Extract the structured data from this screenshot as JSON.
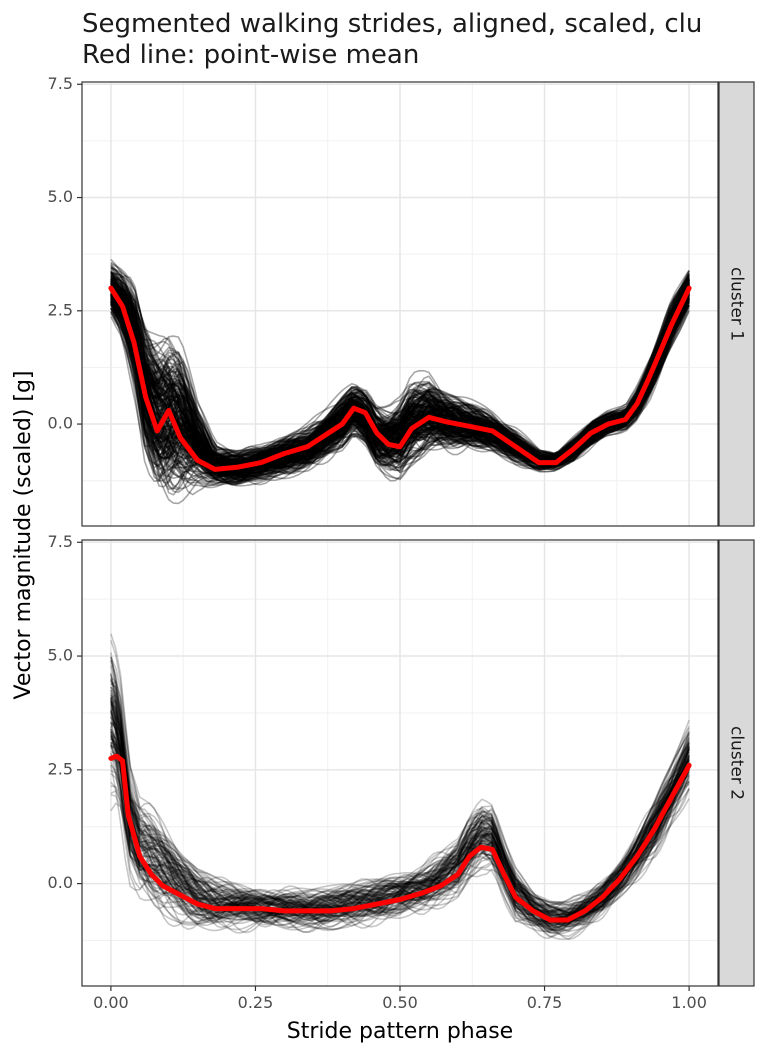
{
  "chart_data": {
    "type": "line",
    "title_lines": [
      "Segmented walking strides, aligned, scaled, clu",
      "Red line: point-wise mean"
    ],
    "xlabel": "Stride pattern phase",
    "ylabel": "Vector magnitude (scaled) [g]",
    "xlim": [
      -0.05,
      1.05
    ],
    "x_ticks": [
      0.0,
      0.25,
      0.5,
      0.75,
      1.0
    ],
    "x_tick_labels": [
      "0.00",
      "0.25",
      "0.50",
      "0.75",
      "1.00"
    ],
    "y_ticks": [
      0.0,
      2.5,
      5.0,
      7.5
    ],
    "y_tick_labels": [
      "0.0",
      "2.5",
      "5.0",
      "7.5"
    ],
    "grid": true,
    "individual_line_color": "#000000",
    "mean_line_color": "#ff0000",
    "panels": [
      {
        "strip": "cluster 1",
        "ylim": [
          -2.25,
          7.55
        ],
        "mean": {
          "x": [
            0.0,
            0.02,
            0.04,
            0.06,
            0.08,
            0.1,
            0.12,
            0.15,
            0.18,
            0.22,
            0.26,
            0.3,
            0.34,
            0.37,
            0.4,
            0.42,
            0.44,
            0.46,
            0.48,
            0.5,
            0.52,
            0.55,
            0.58,
            0.62,
            0.66,
            0.7,
            0.74,
            0.77,
            0.8,
            0.83,
            0.86,
            0.89,
            0.91,
            0.93,
            0.95,
            0.97,
            1.0
          ],
          "y": [
            3.0,
            2.6,
            1.8,
            0.6,
            -0.15,
            0.3,
            -0.3,
            -0.8,
            -1.0,
            -0.95,
            -0.85,
            -0.65,
            -0.5,
            -0.25,
            0.0,
            0.35,
            0.25,
            -0.2,
            -0.45,
            -0.5,
            -0.1,
            0.15,
            0.05,
            -0.05,
            -0.15,
            -0.5,
            -0.85,
            -0.85,
            -0.55,
            -0.2,
            0.0,
            0.1,
            0.45,
            1.0,
            1.6,
            2.2,
            3.0
          ]
        },
        "band": {
          "x": [
            0.0,
            0.02,
            0.04,
            0.06,
            0.08,
            0.1,
            0.12,
            0.15,
            0.18,
            0.22,
            0.26,
            0.3,
            0.34,
            0.37,
            0.4,
            0.42,
            0.44,
            0.46,
            0.48,
            0.5,
            0.52,
            0.55,
            0.58,
            0.62,
            0.66,
            0.7,
            0.74,
            0.77,
            0.8,
            0.83,
            0.86,
            0.89,
            0.91,
            0.93,
            0.95,
            0.97,
            1.0
          ],
          "lower": [
            2.5,
            2.0,
            1.0,
            -0.6,
            -1.3,
            -1.4,
            -1.3,
            -1.2,
            -1.3,
            -1.3,
            -1.2,
            -1.1,
            -0.95,
            -0.7,
            -0.45,
            -0.15,
            -0.4,
            -0.9,
            -1.0,
            -1.0,
            -0.7,
            -0.5,
            -0.5,
            -0.45,
            -0.55,
            -0.8,
            -1.0,
            -1.0,
            -0.8,
            -0.45,
            -0.2,
            -0.1,
            0.15,
            0.6,
            1.2,
            1.8,
            2.6
          ],
          "upper": [
            3.5,
            3.3,
            3.0,
            2.2,
            1.9,
            1.9,
            1.6,
            0.3,
            -0.5,
            -0.6,
            -0.5,
            -0.3,
            -0.1,
            0.2,
            0.6,
            0.85,
            0.7,
            0.35,
            0.3,
            0.5,
            0.9,
            0.95,
            0.65,
            0.45,
            0.2,
            -0.15,
            -0.6,
            -0.65,
            -0.3,
            0.05,
            0.25,
            0.35,
            0.75,
            1.35,
            2.0,
            2.7,
            3.4
          ]
        }
      },
      {
        "strip": "cluster 2",
        "ylim": [
          -2.25,
          7.55
        ],
        "mean": {
          "x": [
            0.0,
            0.01,
            0.02,
            0.03,
            0.05,
            0.07,
            0.09,
            0.12,
            0.15,
            0.18,
            0.22,
            0.26,
            0.3,
            0.34,
            0.38,
            0.42,
            0.46,
            0.5,
            0.54,
            0.57,
            0.6,
            0.62,
            0.64,
            0.66,
            0.68,
            0.7,
            0.73,
            0.76,
            0.79,
            0.82,
            0.85,
            0.88,
            0.91,
            0.94,
            0.97,
            1.0
          ],
          "y": [
            2.75,
            2.8,
            2.7,
            1.5,
            0.6,
            0.2,
            -0.05,
            -0.25,
            -0.45,
            -0.55,
            -0.55,
            -0.55,
            -0.6,
            -0.6,
            -0.6,
            -0.55,
            -0.45,
            -0.35,
            -0.2,
            -0.05,
            0.2,
            0.6,
            0.8,
            0.75,
            0.2,
            -0.3,
            -0.6,
            -0.8,
            -0.8,
            -0.6,
            -0.3,
            0.1,
            0.6,
            1.2,
            1.9,
            2.6
          ]
        },
        "band": {
          "x": [
            0.0,
            0.01,
            0.02,
            0.03,
            0.05,
            0.07,
            0.09,
            0.12,
            0.15,
            0.18,
            0.22,
            0.26,
            0.3,
            0.34,
            0.38,
            0.42,
            0.46,
            0.5,
            0.54,
            0.57,
            0.6,
            0.62,
            0.64,
            0.66,
            0.68,
            0.7,
            0.73,
            0.76,
            0.79,
            0.82,
            0.85,
            0.88,
            0.91,
            0.94,
            0.97,
            1.0
          ],
          "lower": [
            1.8,
            1.7,
            1.2,
            0.2,
            -0.3,
            -0.5,
            -0.7,
            -0.85,
            -0.95,
            -1.0,
            -1.0,
            -1.0,
            -1.0,
            -1.0,
            -1.0,
            -0.95,
            -0.85,
            -0.75,
            -0.6,
            -0.45,
            -0.3,
            0.0,
            0.3,
            0.3,
            -0.3,
            -0.8,
            -1.0,
            -1.2,
            -1.2,
            -1.0,
            -0.7,
            -0.3,
            0.1,
            0.6,
            1.3,
            1.9
          ],
          "upper": [
            5.5,
            5.0,
            4.2,
            2.7,
            1.8,
            1.6,
            1.3,
            0.7,
            0.3,
            0.1,
            0.0,
            -0.1,
            -0.1,
            -0.15,
            -0.1,
            0.0,
            0.1,
            0.2,
            0.4,
            0.7,
            1.0,
            1.5,
            1.8,
            1.7,
            0.9,
            0.3,
            -0.2,
            -0.4,
            -0.4,
            -0.2,
            0.1,
            0.5,
            1.1,
            1.8,
            2.6,
            3.5
          ]
        }
      }
    ]
  }
}
